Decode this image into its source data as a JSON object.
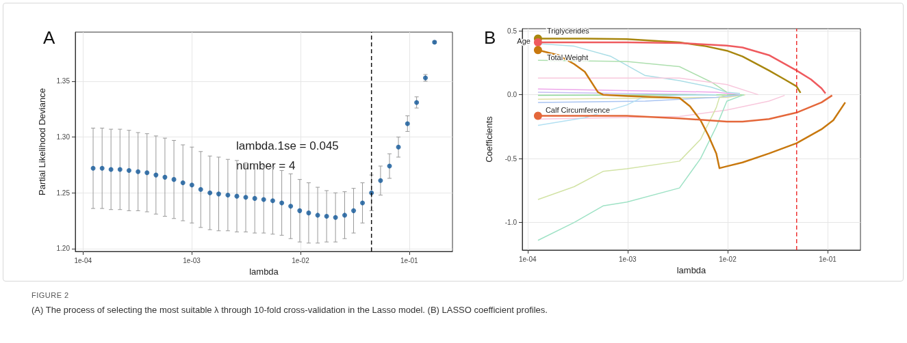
{
  "chart_data": [
    {
      "type": "scatter",
      "title": "A",
      "xlabel": "lambda",
      "ylabel": "Partial Likelihood Deviance",
      "log": "x",
      "grid": true,
      "legend": false,
      "marker": "circle",
      "xlim": [
        8.5e-05,
        0.25
      ],
      "ylim": [
        1.1975,
        1.394
      ],
      "xticks": [
        {
          "value": 0.0001,
          "label": "1e-04"
        },
        {
          "value": 0.001,
          "label": "1e-03"
        },
        {
          "value": 0.01,
          "label": "1e-02"
        },
        {
          "value": 0.1,
          "label": "1e-01"
        }
      ],
      "yticks": [
        {
          "value": 1.2,
          "label": "1.20"
        },
        {
          "value": 1.25,
          "label": "1.25"
        },
        {
          "value": 1.3,
          "label": "1.30"
        },
        {
          "value": 1.35,
          "label": "1.35"
        }
      ],
      "x": [
        0.000124,
        0.00015,
        0.000181,
        0.000219,
        0.000265,
        0.000321,
        0.000388,
        0.000469,
        0.000567,
        0.000686,
        0.00083,
        0.001004,
        0.00121,
        0.00147,
        0.00177,
        0.00215,
        0.0026,
        0.00314,
        0.0038,
        0.00459,
        0.00556,
        0.00673,
        0.00813,
        0.00984,
        0.0119,
        0.0144,
        0.0174,
        0.021,
        0.0255,
        0.0308,
        0.0372,
        0.045,
        0.0545,
        0.0659,
        0.0796,
        0.0964,
        0.117,
        0.141,
        0.171
      ],
      "series": [
        {
          "color": "#0e5597",
          "values": [
            1.272,
            1.272,
            1.271,
            1.271,
            1.27,
            1.269,
            1.268,
            1.266,
            1.264,
            1.262,
            1.259,
            1.257,
            1.253,
            1.25,
            1.249,
            1.248,
            1.247,
            1.246,
            1.245,
            1.244,
            1.243,
            1.241,
            1.238,
            1.234,
            1.232,
            1.23,
            1.229,
            1.228,
            1.23,
            1.234,
            1.241,
            1.25,
            1.261,
            1.274,
            1.291,
            1.312,
            1.331,
            1.353,
            1.385
          ],
          "errors": [
            0.036,
            0.036,
            0.036,
            0.036,
            0.036,
            0.035,
            0.035,
            0.035,
            0.035,
            0.035,
            0.034,
            0.034,
            0.034,
            0.033,
            0.033,
            0.032,
            0.032,
            0.031,
            0.031,
            0.03,
            0.03,
            0.029,
            0.029,
            0.028,
            0.027,
            0.025,
            0.023,
            0.022,
            0.021,
            0.02,
            0.018,
            0.016,
            0.013,
            0.011,
            0.009,
            0.007,
            0.005,
            0.003,
            0.001
          ]
        }
      ],
      "ref_lines": [
        {
          "axis": "x",
          "value": 0.045,
          "color": "#111111",
          "line_style": "dashed"
        }
      ],
      "annotations": [
        "lambda.1se = 0.045",
        "number = 4"
      ]
    },
    {
      "type": "line",
      "title": "B",
      "xlabel": "lambda",
      "ylabel": "Coefficients",
      "log": "x",
      "grid": true,
      "legend": false,
      "marker": "none",
      "xlim": [
        8.85e-05,
        0.213
      ],
      "ylim": [
        -1.216,
        0.517
      ],
      "xticks": [
        {
          "value": 0.0001,
          "label": "1e-04"
        },
        {
          "value": 0.001,
          "label": "1e-03"
        },
        {
          "value": 0.01,
          "label": "1e-02"
        },
        {
          "value": 0.1,
          "label": "1e-01"
        }
      ],
      "yticks": [
        {
          "value": 0.5,
          "label": "0.5"
        },
        {
          "value": 0,
          "label": "0.0"
        },
        {
          "value": -0.5,
          "label": "-0.5"
        },
        {
          "value": -1,
          "label": "-1.0"
        }
      ],
      "series": [
        {
          "color": "#a9dde6",
          "x": [
            0.000127,
            0.000292,
            0.000682,
            0.0015,
            0.0033,
            0.00683,
            0.00983,
            0.0133
          ],
          "values": [
            0.4,
            0.38,
            0.3,
            0.15,
            0.11,
            0.06,
            0.02,
            0.01
          ]
        },
        {
          "color": "#addfae",
          "x": [
            0.000127,
            0.000982,
            0.0033,
            0.00683,
            0.00983
          ],
          "values": [
            0.27,
            0.26,
            0.22,
            0.1,
            0.02
          ]
        },
        {
          "color": "#f8c7dc",
          "x": [
            0.000127,
            0.0033,
            0.00983,
            0.0203
          ],
          "values": [
            0.13,
            0.13,
            0.08,
            0.0
          ]
        },
        {
          "color": "#eea6ea",
          "x": [
            0.000127,
            0.00771,
            0.0133
          ],
          "values": [
            0.045,
            0.02,
            0.0
          ]
        },
        {
          "color": "#c7bdf3",
          "x": [
            0.000127,
            0.00771
          ],
          "values": [
            0.02,
            0.0
          ]
        },
        {
          "color": "#8fd89a",
          "x": [
            0.000127,
            0.0146
          ],
          "values": [
            -0.005,
            0.0
          ]
        },
        {
          "color": "#e0e0a6",
          "x": [
            0.000127,
            0.00983,
            0.015
          ],
          "values": [
            -0.035,
            -0.02,
            0.0
          ]
        },
        {
          "color": "#a9c4f2",
          "x": [
            0.000127,
            0.0015,
            0.00771,
            0.0133
          ],
          "values": [
            -0.06,
            -0.05,
            -0.02,
            0.0
          ]
        },
        {
          "color": "#f8c7dc",
          "x": [
            0.000127,
            0.0033,
            0.00983,
            0.0259,
            0.0372
          ],
          "values": [
            -0.19,
            -0.17,
            -0.12,
            -0.05,
            -0.005
          ]
        },
        {
          "color": "#b3e0f2",
          "x": [
            0.000127,
            0.000373,
            0.000982,
            0.00141,
            0.0033,
            0.00771
          ],
          "values": [
            -0.24,
            -0.18,
            -0.08,
            -0.02,
            -0.005,
            0.0
          ]
        },
        {
          "color": "#d2e3a5",
          "x": [
            0.000127,
            0.000292,
            0.000569,
            0.000982,
            0.0033,
            0.00536,
            0.00771,
            0.00829,
            0.00983
          ],
          "values": [
            -0.82,
            -0.72,
            -0.6,
            -0.58,
            -0.52,
            -0.35,
            -0.1,
            -0.02,
            0.0
          ]
        },
        {
          "color": "#9ee2c5",
          "x": [
            0.000127,
            0.000292,
            0.000569,
            0.000982,
            0.0033,
            0.00536,
            0.00771,
            0.00983,
            0.0146
          ],
          "values": [
            -1.14,
            -1.0,
            -0.87,
            -0.84,
            -0.73,
            -0.5,
            -0.25,
            -0.05,
            0.0
          ]
        },
        {
          "name": "Triglycerides",
          "color": "#a8860e",
          "x": [
            0.000127,
            0.000373,
            0.000982,
            0.0033,
            0.00605,
            0.00983,
            0.0141,
            0.0259,
            0.0372,
            0.0489,
            0.0536
          ],
          "values": [
            0.44,
            0.44,
            0.435,
            0.41,
            0.38,
            0.345,
            0.3,
            0.19,
            0.12,
            0.066,
            0.015
          ]
        },
        {
          "name": "Age",
          "color": "#ef5a5e",
          "x": [
            0.000127,
            0.000982,
            0.0033,
            0.00983,
            0.0141,
            0.0259,
            0.0489,
            0.0682,
            0.0869,
            0.0953
          ],
          "values": [
            0.41,
            0.41,
            0.405,
            0.385,
            0.37,
            0.31,
            0.19,
            0.12,
            0.05,
            0.01
          ]
        },
        {
          "name": "Total Weight",
          "color": "#c8780e",
          "x": [
            0.000127,
            0.000203,
            0.000292,
            0.000373,
            0.000505,
            0.000569,
            0.000982,
            0.0023,
            0.0033,
            0.0042,
            0.00536,
            0.00643,
            0.00771,
            0.00829,
            0.00983,
            0.0141,
            0.0259,
            0.0489,
            0.0869,
            0.114,
            0.15
          ],
          "values": [
            0.35,
            0.31,
            0.24,
            0.18,
            0.02,
            0.0,
            -0.01,
            -0.02,
            -0.025,
            -0.09,
            -0.2,
            -0.32,
            -0.46,
            -0.575,
            -0.56,
            -0.53,
            -0.46,
            -0.38,
            -0.27,
            -0.2,
            -0.06
          ]
        },
        {
          "name": "Calf Circumference",
          "color": "#e4673a",
          "x": [
            0.000127,
            0.000982,
            0.0033,
            0.00983,
            0.0141,
            0.0259,
            0.0489,
            0.0869,
            0.111
          ],
          "values": [
            -0.165,
            -0.165,
            -0.185,
            -0.21,
            -0.21,
            -0.19,
            -0.14,
            -0.06,
            -0.005
          ]
        }
      ],
      "ref_lines": [
        {
          "axis": "x",
          "value": 0.049,
          "color": "#ee3333",
          "line_style": "dashed"
        }
      ],
      "annotations": [
        "FIGURE 2",
        "(A) The process of selecting the most suitable λ through 10-fold cross-validation in the Lasso model. (B) LASSO coefficient profiles."
      ]
    }
  ]
}
